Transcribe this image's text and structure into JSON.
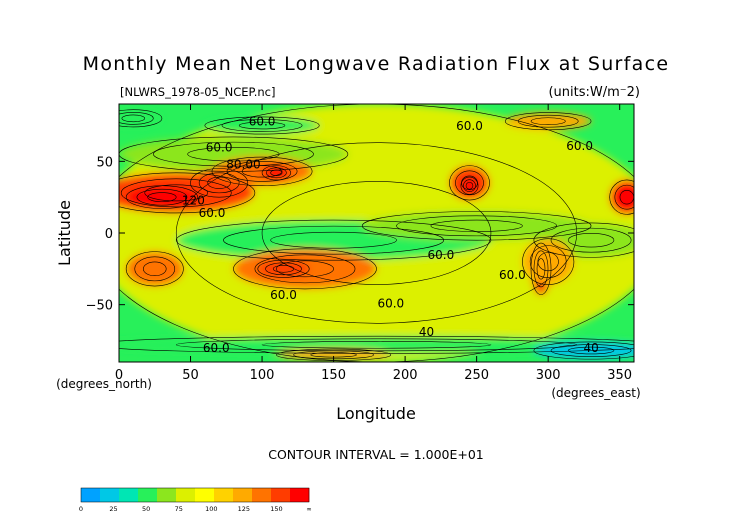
{
  "chart_data": {
    "type": "heatmap",
    "title": "Monthly Mean Net Longwave Radiation Flux at Surface",
    "source": "[NLWRS_1978-05_NCEP.nc]",
    "units": "(units:W/m⁻2)",
    "xlabel": "Longitude",
    "ylabel": "Latitude",
    "x_unit": "(degrees_east)",
    "y_unit": "(degrees_north)",
    "xlim": [
      0,
      360
    ],
    "ylim": [
      -90,
      90
    ],
    "x_ticks": [
      0,
      50,
      100,
      150,
      200,
      250,
      300,
      350
    ],
    "y_ticks": [
      50,
      0,
      -50
    ],
    "contour_note": "CONTOUR INTERVAL = 1.000E+01",
    "contour_labels": [
      {
        "text": "60.0",
        "lon": 100,
        "lat": 75
      },
      {
        "text": "60.0",
        "lon": 245,
        "lat": 72
      },
      {
        "text": "60.0",
        "lon": 70,
        "lat": 57
      },
      {
        "text": "80.00",
        "lon": 87,
        "lat": 45
      },
      {
        "text": "60.0",
        "lon": 322,
        "lat": 58
      },
      {
        "text": "120",
        "lon": 52,
        "lat": 20
      },
      {
        "text": "60.0",
        "lon": 65,
        "lat": 11
      },
      {
        "text": "60.0",
        "lon": 225,
        "lat": -18
      },
      {
        "text": "60.0",
        "lon": 275,
        "lat": -32
      },
      {
        "text": "60.0",
        "lon": 115,
        "lat": -46
      },
      {
        "text": "60.0",
        "lon": 190,
        "lat": -52
      },
      {
        "text": "40",
        "lon": 215,
        "lat": -72
      },
      {
        "text": "60.0",
        "lon": 68,
        "lat": -83
      },
      {
        "text": "40",
        "lon": 330,
        "lat": -83
      }
    ],
    "colorbar": {
      "ticks": [
        "0",
        "25",
        "50",
        "75",
        "100",
        "125",
        "150",
        "∞"
      ],
      "colors": [
        "#00a2ff",
        "#00c8e6",
        "#00e6b4",
        "#28f05a",
        "#8ce61e",
        "#dcf000",
        "#ffff00",
        "#ffd200",
        "#ffaa00",
        "#ff7300",
        "#ff3c00",
        "#ff0000"
      ]
    },
    "regions": [
      {
        "lon": 180,
        "lat": 0,
        "rx": 200,
        "ry": 90,
        "value": 70
      },
      {
        "lon": 150,
        "lat": -5,
        "rx": 110,
        "ry": 14,
        "value": 48
      },
      {
        "lon": 250,
        "lat": 5,
        "rx": 80,
        "ry": 10,
        "value": 50
      },
      {
        "lon": 330,
        "lat": -5,
        "rx": 40,
        "ry": 12,
        "value": 52
      },
      {
        "lon": 80,
        "lat": 55,
        "rx": 80,
        "ry": 12,
        "value": 60
      },
      {
        "lon": 40,
        "lat": 28,
        "rx": 55,
        "ry": 14,
        "value": 130
      },
      {
        "lon": 30,
        "lat": 25,
        "rx": 25,
        "ry": 8,
        "value": 155
      },
      {
        "lon": 70,
        "lat": 35,
        "rx": 20,
        "ry": 10,
        "value": 135
      },
      {
        "lon": 100,
        "lat": 43,
        "rx": 35,
        "ry": 10,
        "value": 120
      },
      {
        "lon": 110,
        "lat": 42,
        "rx": 10,
        "ry": 5,
        "value": 140
      },
      {
        "lon": 245,
        "lat": 35,
        "rx": 14,
        "ry": 12,
        "value": 125
      },
      {
        "lon": 245,
        "lat": 33,
        "rx": 6,
        "ry": 6,
        "value": 145
      },
      {
        "lon": 355,
        "lat": 25,
        "rx": 12,
        "ry": 12,
        "value": 145
      },
      {
        "lon": 25,
        "lat": -25,
        "rx": 20,
        "ry": 12,
        "value": 120
      },
      {
        "lon": 130,
        "lat": -25,
        "rx": 50,
        "ry": 14,
        "value": 115
      },
      {
        "lon": 115,
        "lat": -25,
        "rx": 18,
        "ry": 6,
        "value": 125
      },
      {
        "lon": 295,
        "lat": -25,
        "rx": 7,
        "ry": 18,
        "value": 155
      },
      {
        "lon": 300,
        "lat": -20,
        "rx": 18,
        "ry": 16,
        "value": 110
      },
      {
        "lon": 180,
        "lat": -78,
        "rx": 200,
        "ry": 6,
        "value": 40
      },
      {
        "lon": 330,
        "lat": -82,
        "rx": 40,
        "ry": 6,
        "value": 20
      },
      {
        "lon": 150,
        "lat": -85,
        "rx": 40,
        "ry": 4,
        "value": 110
      },
      {
        "lon": 100,
        "lat": 75,
        "rx": 40,
        "ry": 6,
        "value": 40
      },
      {
        "lon": 300,
        "lat": 78,
        "rx": 30,
        "ry": 6,
        "value": 110
      },
      {
        "lon": 10,
        "lat": 80,
        "rx": 20,
        "ry": 6,
        "value": 40
      }
    ]
  }
}
